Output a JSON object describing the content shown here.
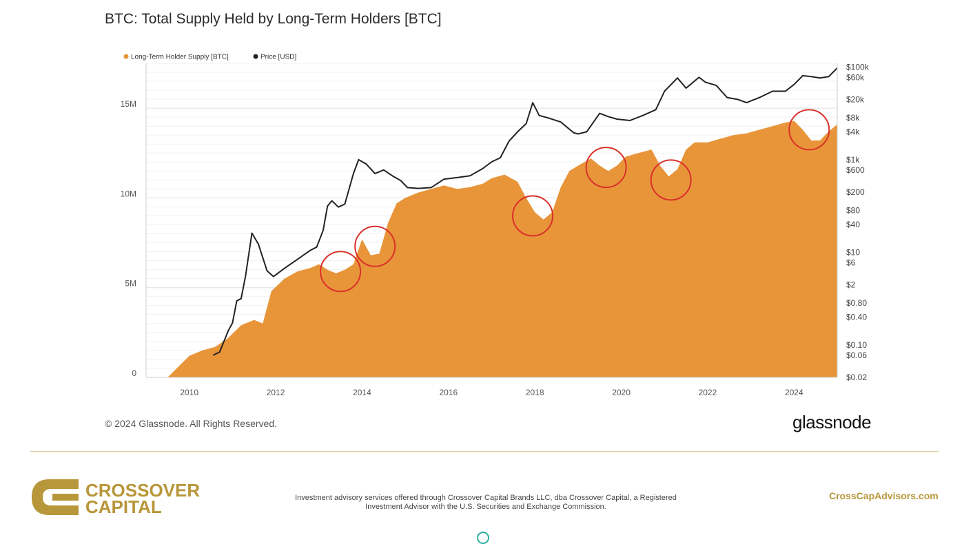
{
  "header": {
    "title": "BTC: Total Supply Held by Long-Term Holders [BTC]"
  },
  "footer": {
    "copyright": "© 2024 Glassnode. All Rights Reserved.",
    "brand": "glassnode",
    "logo_line1": "CROSSOVER",
    "logo_line2": "CAPITAL",
    "disclaimer": "Investment advisory services offered through Crossover Capital Brands LLC, dba Crossover Capital, a Registered Investment Advisor with the U.S. Securities and Exchange Commission.",
    "website": "CrossCapAdvisors.com"
  },
  "colors": {
    "supply": "#E8953A",
    "price": "#222222",
    "circle": "#D9302A",
    "accent": "#B8963A"
  },
  "chart_data": {
    "type": "area",
    "xlim": [
      2009.0,
      2025.0
    ],
    "x_ticks": [
      "2010",
      "2012",
      "2014",
      "2016",
      "2018",
      "2020",
      "2022",
      "2024"
    ],
    "y_left_ticks": [
      "0",
      "5M",
      "10M",
      "15M"
    ],
    "y_left_range": [
      0,
      17500000
    ],
    "y_right_ticks": [
      "$100k",
      "$60k",
      "$20k",
      "$8k",
      "$4k",
      "$1k",
      "$600",
      "$200",
      "$80",
      "$40",
      "$10",
      "$6",
      "$2",
      "$0.80",
      "$0.40",
      "$0.10",
      "$0.06",
      "$0.02"
    ],
    "y_right_range": [
      0.02,
      120000
    ],
    "y_right_scale": "log",
    "legend_position": "top-left",
    "grid": true,
    "series": [
      {
        "name": "Long-Term Holder Supply [BTC]",
        "kind": "area",
        "x": [
          2009.0,
          2009.5,
          2009.75,
          2010.0,
          2010.3,
          2010.6,
          2010.9,
          2011.2,
          2011.5,
          2011.7,
          2011.9,
          2012.2,
          2012.5,
          2012.8,
          2013.0,
          2013.2,
          2013.4,
          2013.6,
          2013.8,
          2014.0,
          2014.2,
          2014.4,
          2014.6,
          2014.8,
          2015.0,
          2015.3,
          2015.6,
          2015.9,
          2016.2,
          2016.5,
          2016.8,
          2017.0,
          2017.3,
          2017.6,
          2017.8,
          2018.0,
          2018.2,
          2018.4,
          2018.6,
          2018.8,
          2019.0,
          2019.3,
          2019.5,
          2019.7,
          2019.9,
          2020.1,
          2020.4,
          2020.7,
          2020.9,
          2021.1,
          2021.3,
          2021.5,
          2021.7,
          2022.0,
          2022.3,
          2022.6,
          2022.9,
          2023.2,
          2023.5,
          2023.8,
          2024.0,
          2024.2,
          2024.4,
          2024.6,
          2024.8,
          2025.0
        ],
        "values": [
          0,
          0,
          600000,
          1200000,
          1500000,
          1700000,
          2200000,
          2900000,
          3200000,
          3000000,
          4800000,
          5500000,
          5900000,
          6100000,
          6300000,
          6000000,
          5800000,
          6000000,
          6300000,
          7700000,
          6800000,
          6900000,
          8600000,
          9700000,
          10000000,
          10300000,
          10500000,
          10700000,
          10500000,
          10600000,
          10800000,
          11100000,
          11300000,
          10900000,
          10000000,
          9200000,
          8800000,
          9200000,
          10600000,
          11500000,
          11800000,
          12200000,
          11800000,
          11500000,
          11800000,
          12300000,
          12500000,
          12700000,
          11800000,
          11200000,
          11600000,
          12700000,
          13100000,
          13100000,
          13300000,
          13500000,
          13600000,
          13800000,
          14000000,
          14200000,
          14300000,
          13800000,
          13200000,
          13200000,
          13700000,
          14100000
        ]
      },
      {
        "name": "Price [USD]",
        "kind": "line",
        "x": [
          2010.55,
          2010.7,
          2010.9,
          2011.0,
          2011.1,
          2011.2,
          2011.3,
          2011.45,
          2011.6,
          2011.8,
          2011.95,
          2012.2,
          2012.5,
          2012.8,
          2012.95,
          2013.1,
          2013.2,
          2013.3,
          2013.45,
          2013.6,
          2013.8,
          2013.92,
          2014.1,
          2014.3,
          2014.5,
          2014.7,
          2014.9,
          2015.05,
          2015.3,
          2015.6,
          2015.9,
          2016.2,
          2016.5,
          2016.8,
          2017.0,
          2017.2,
          2017.4,
          2017.6,
          2017.8,
          2017.95,
          2018.1,
          2018.3,
          2018.6,
          2018.9,
          2019.0,
          2019.2,
          2019.5,
          2019.7,
          2019.9,
          2020.2,
          2020.5,
          2020.8,
          2021.0,
          2021.3,
          2021.5,
          2021.8,
          2021.95,
          2022.2,
          2022.45,
          2022.7,
          2022.9,
          2023.2,
          2023.5,
          2023.8,
          2024.0,
          2024.2,
          2024.4,
          2024.6,
          2024.8,
          2025.0
        ],
        "values": [
          0.06,
          0.07,
          0.2,
          0.3,
          0.9,
          1.0,
          3,
          26,
          15,
          4,
          3,
          4.5,
          7,
          11,
          13,
          30,
          100,
          130,
          95,
          110,
          500,
          1000,
          800,
          500,
          600,
          450,
          350,
          250,
          240,
          250,
          380,
          410,
          450,
          650,
          900,
          1100,
          2500,
          4000,
          6000,
          17000,
          9000,
          8000,
          6500,
          3800,
          3600,
          4000,
          10000,
          8500,
          7500,
          7000,
          9000,
          12000,
          30000,
          58000,
          35000,
          60000,
          47000,
          40000,
          22000,
          20000,
          17000,
          22000,
          30000,
          30000,
          42000,
          65000,
          62000,
          58000,
          62000,
          95000
        ]
      }
    ],
    "annotations": [
      {
        "type": "circle",
        "x": 2013.5,
        "y": 5900000
      },
      {
        "type": "circle",
        "x": 2014.3,
        "y": 7300000
      },
      {
        "type": "circle",
        "x": 2017.95,
        "y": 9000000
      },
      {
        "type": "circle",
        "x": 2019.65,
        "y": 11700000
      },
      {
        "type": "circle",
        "x": 2021.15,
        "y": 11000000
      },
      {
        "type": "circle",
        "x": 2024.35,
        "y": 13800000
      }
    ]
  }
}
